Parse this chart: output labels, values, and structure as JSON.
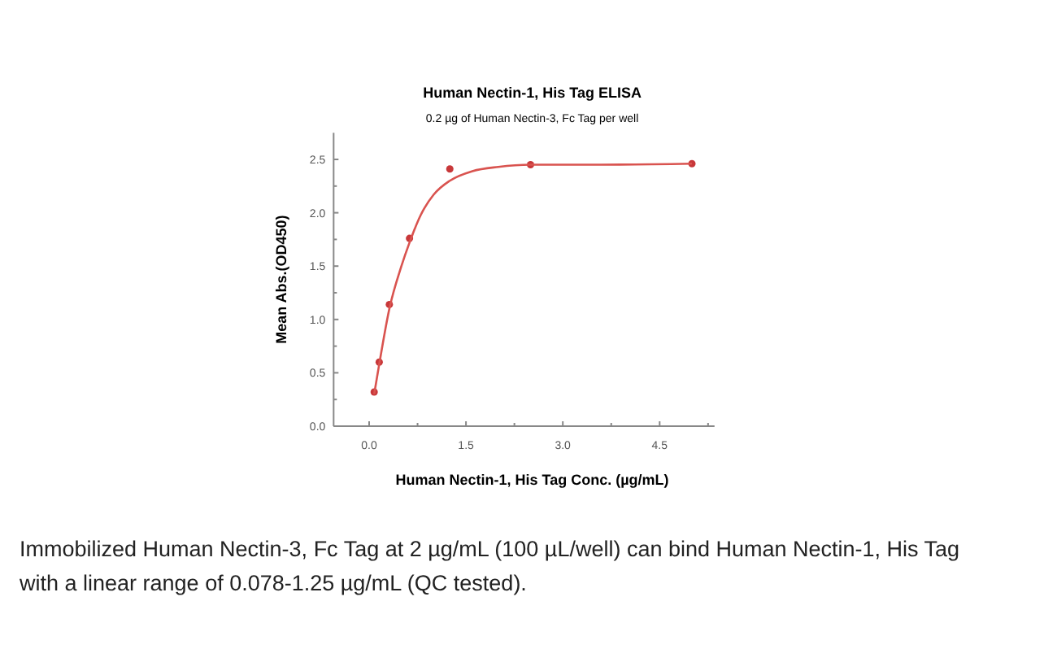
{
  "chart_data": {
    "type": "scatter",
    "title": "Human Nectin-1, His Tag ELISA",
    "subtitle": "0.2 µg of Human Nectin-3, Fc Tag per well",
    "xlabel": "Human Nectin-1, His Tag Conc. (µg/mL)",
    "ylabel": "Mean Abs.(OD450)",
    "x": [
      0.078,
      0.156,
      0.313,
      0.625,
      1.25,
      2.5,
      5
    ],
    "series": [
      {
        "color": "#c8383a",
        "values": [
          0.32,
          0.6,
          1.14,
          1.76,
          2.41,
          2.45,
          2.46
        ]
      },
      {
        "type": "line",
        "marker": "none",
        "color": "#d9534f",
        "x": [
          0.078,
          0.156,
          0.313,
          0.5,
          0.625,
          0.8,
          1.0,
          1.25,
          1.6,
          2.0,
          2.5,
          3.5,
          5
        ],
        "values": [
          0.3,
          0.58,
          1.1,
          1.5,
          1.72,
          1.98,
          2.17,
          2.3,
          2.39,
          2.43,
          2.45,
          2.45,
          2.46
        ]
      }
    ],
    "xlim": [
      -0.55,
      5.35
    ],
    "ylim": [
      0,
      2.75
    ],
    "xticks": [
      {
        "value": 0,
        "label": "0.0"
      },
      {
        "value": 0.75,
        "label": null
      },
      {
        "value": 1.5,
        "label": "1.5"
      },
      {
        "value": 2.25,
        "label": null
      },
      {
        "value": 3,
        "label": "3.0"
      },
      {
        "value": 3.75,
        "label": null
      },
      {
        "value": 4.5,
        "label": "4.5"
      },
      {
        "value": 5.25,
        "label": null
      }
    ],
    "yticks": [
      {
        "value": 0,
        "label": "0.0"
      },
      {
        "value": 0.25,
        "label": null
      },
      {
        "value": 0.5,
        "label": "0.5"
      },
      {
        "value": 0.75,
        "label": null
      },
      {
        "value": 1,
        "label": "1.0"
      },
      {
        "value": 1.25,
        "label": null
      },
      {
        "value": 1.5,
        "label": "1.5"
      },
      {
        "value": 1.75,
        "label": null
      },
      {
        "value": 2,
        "label": "2.0"
      },
      {
        "value": 2.25,
        "label": null
      },
      {
        "value": 2.5,
        "label": "2.5"
      }
    ],
    "marker": "circle",
    "grid": false,
    "annotations": [
      "Immobilized Human Nectin-3, Fc Tag at 2 µg/mL (100 µL/well) can bind Human Nectin-1, His Tag with a linear range of 0.078-1.25 µg/mL (QC tested)."
    ]
  }
}
